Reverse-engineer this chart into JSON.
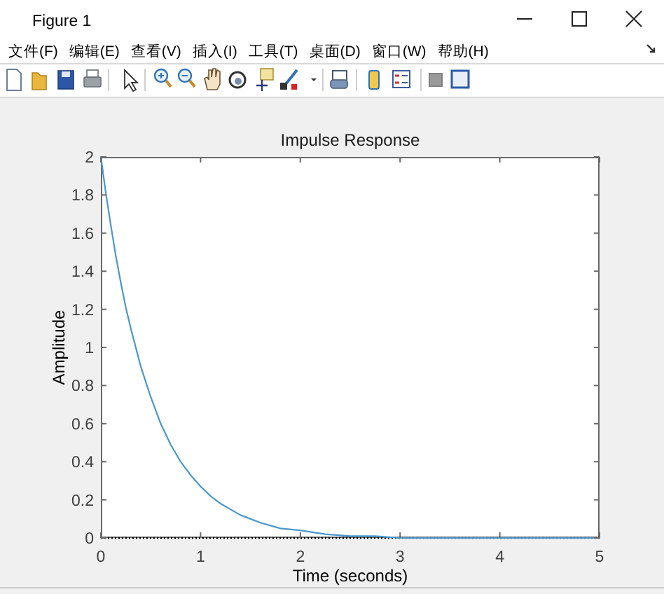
{
  "chart_data": {
    "type": "line",
    "title": "Impulse Response",
    "xlabel": "Time (seconds)",
    "ylabel": "Amplitude",
    "x": [
      0,
      0.05,
      0.1,
      0.15,
      0.2,
      0.25,
      0.3,
      0.4,
      0.5,
      0.6,
      0.7,
      0.8,
      0.9,
      1,
      1.1,
      1.2,
      1.4,
      1.6,
      1.8,
      2,
      2.25,
      2.5,
      2.75,
      3,
      3.5,
      4,
      4.5,
      5
    ],
    "series": [
      {
        "color": "#4a98cc",
        "values": [
          2,
          1.81,
          1.64,
          1.48,
          1.34,
          1.21,
          1.1,
          0.9,
          0.74,
          0.6,
          0.49,
          0.4,
          0.33,
          0.27,
          0.22,
          0.18,
          0.12,
          0.08,
          0.05,
          0.04,
          0.02,
          0.01,
          0.01,
          0,
          0,
          0,
          0,
          0
        ]
      }
    ],
    "xlim": [
      0,
      5
    ],
    "ylim": [
      0,
      2
    ],
    "xticks": [
      0,
      1,
      2,
      3,
      4,
      5
    ],
    "yticks": [
      0,
      0.2,
      0.4,
      0.6,
      0.8,
      1,
      1.2,
      1.4,
      1.6,
      1.8,
      2
    ],
    "line_style": "solid",
    "ref_lines": [
      {
        "axis": "y",
        "value": 0,
        "color": "#000000",
        "line_style": "dotted"
      }
    ],
    "annotations": [
      "Figure 1",
      "文件(F)",
      "编辑(E)",
      "查看(V)",
      "插入(I)",
      "工具(T)",
      "桌面(D)",
      "窗口(W)",
      "帮助(H)"
    ]
  }
}
